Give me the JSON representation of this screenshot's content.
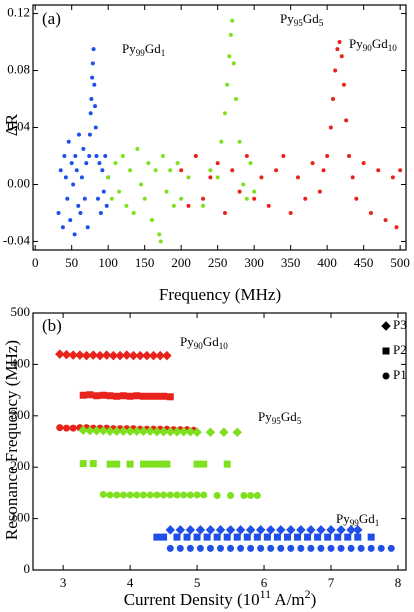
{
  "chart_data": [
    {
      "type": "scatter",
      "label": "(a)",
      "x_label": [
        "Frequency (MHz)"
      ],
      "y_label": "ΔR",
      "xlim": [
        -3,
        508
      ],
      "ylim": [
        -0.046,
        0.126
      ],
      "xticks": [
        0,
        50,
        100,
        150,
        200,
        250,
        300,
        350,
        400,
        450,
        500
      ],
      "yticks": [
        -0.04,
        {
          "value": 0,
          "label": "0.00"
        },
        0.04,
        0.08,
        0.12
      ],
      "annotations": [
        [
          "Py",
          "99",
          "Gd",
          "1"
        ],
        [
          "Py",
          "95",
          "Gd",
          "5"
        ],
        [
          "Py",
          "90",
          "Gd",
          "10"
        ]
      ],
      "series": [
        {
          "color": "#1f4fe8",
          "marker": "circle",
          "x": [
            32,
            35,
            38,
            40,
            42,
            44,
            46,
            48,
            50,
            52,
            54,
            55,
            57,
            59,
            60,
            62,
            64,
            66,
            68,
            70,
            72,
            74,
            75,
            76,
            77,
            78,
            79,
            80,
            81,
            82,
            83,
            84,
            86,
            88,
            90,
            92,
            94,
            96,
            98,
            100
          ],
          "values": [
            -0.02,
            0.01,
            -0.03,
            0.02,
            0.005,
            -0.01,
            0.03,
            -0.025,
            0.015,
            0.0,
            -0.035,
            0.02,
            0.01,
            -0.015,
            0.035,
            -0.02,
            0.005,
            0.025,
            -0.01,
            0.015,
            -0.03,
            0.02,
            0.035,
            0.05,
            0.06,
            0.075,
            0.085,
            0.095,
            0.07,
            0.055,
            0.04,
            0.02,
            -0.01,
            0.015,
            -0.02,
            0.01,
            -0.005,
            0.02,
            -0.015,
            0.005
          ]
        },
        {
          "color": "#7fe01f",
          "marker": "circle",
          "x": [
            100,
            105,
            110,
            115,
            120,
            125,
            130,
            135,
            140,
            145,
            150,
            155,
            160,
            165,
            170,
            172,
            175,
            180,
            185,
            190,
            195,
            200,
            210,
            220,
            230,
            240,
            250,
            255,
            260,
            263,
            266,
            268,
            270,
            272,
            275,
            280,
            285,
            290,
            295,
            300
          ],
          "values": [
            0.005,
            -0.01,
            0.015,
            -0.005,
            0.02,
            -0.015,
            0.01,
            -0.02,
            0.025,
            0.0,
            -0.01,
            0.015,
            -0.025,
            0.01,
            -0.035,
            -0.04,
            0.02,
            -0.005,
            0.01,
            -0.015,
            0.015,
            -0.01,
            0.005,
            0.02,
            -0.015,
            0.01,
            0.005,
            0.03,
            0.05,
            0.07,
            0.09,
            0.105,
            0.115,
            0.085,
            0.06,
            0.03,
            0.0,
            -0.01,
            0.015,
            -0.005
          ]
        },
        {
          "color": "#e8231c",
          "marker": "circle",
          "x": [
            200,
            210,
            220,
            230,
            240,
            250,
            260,
            270,
            280,
            290,
            300,
            310,
            320,
            330,
            340,
            350,
            360,
            370,
            380,
            390,
            395,
            400,
            405,
            408,
            411,
            414,
            417,
            420,
            423,
            426,
            430,
            435,
            440,
            450,
            460,
            470,
            480,
            490,
            495,
            500
          ],
          "values": [
            0.01,
            -0.015,
            0.02,
            -0.01,
            0.005,
            0.015,
            -0.02,
            0.01,
            -0.005,
            0.02,
            -0.01,
            0.005,
            -0.015,
            0.01,
            0.02,
            -0.02,
            0.005,
            -0.01,
            0.015,
            -0.005,
            0.01,
            0.02,
            0.04,
            0.06,
            0.08,
            0.095,
            0.1,
            0.09,
            0.07,
            0.045,
            0.02,
            0.005,
            -0.01,
            0.015,
            -0.02,
            0.01,
            -0.025,
            0.005,
            -0.03,
            0.01
          ]
        }
      ]
    },
    {
      "type": "scatter",
      "label": "(b)",
      "x_label": [
        "Current Density (10",
        "11",
        " A/m",
        "2",
        ")"
      ],
      "y_label": "Resonance Frequency (MHz)",
      "xlim": [
        2.55,
        8.12
      ],
      "ylim": [
        0,
        500
      ],
      "xticks": [
        3,
        4,
        5,
        6,
        7,
        8
      ],
      "yticks": [
        0,
        100,
        200,
        300,
        400,
        500
      ],
      "annotations": [
        [
          "Py",
          "90",
          "Gd",
          "10"
        ],
        [
          "Py",
          "95",
          "Gd",
          "5"
        ],
        [
          "Py",
          "99",
          "Gd",
          "1"
        ]
      ],
      "legend": [
        {
          "label": "P3",
          "marker": "diamond"
        },
        {
          "label": "P2",
          "marker": "square"
        },
        {
          "label": "P1",
          "marker": "circle"
        }
      ],
      "series": [
        {
          "color": "#e8231c",
          "marker": "diamond",
          "x": [
            2.95,
            3.05,
            3.15,
            3.25,
            3.35,
            3.45,
            3.55,
            3.65,
            3.75,
            3.85,
            3.95,
            4.05,
            4.15,
            4.25,
            4.35,
            4.45,
            4.55
          ],
          "values": [
            420,
            419,
            418,
            418,
            417,
            418,
            417,
            418,
            417,
            417,
            418,
            417,
            417,
            417,
            417,
            417,
            417
          ]
        },
        {
          "color": "#e8231c",
          "marker": "square",
          "x": [
            3.3,
            3.4,
            3.5,
            3.6,
            3.7,
            3.8,
            3.9,
            4.0,
            4.1,
            4.2,
            4.3,
            4.4,
            4.5,
            4.6
          ],
          "values": [
            340,
            341,
            339,
            340,
            339,
            338,
            339,
            338,
            339,
            338,
            338,
            338,
            338,
            337
          ]
        },
        {
          "color": "#e8231c",
          "marker": "circle",
          "x": [
            2.95,
            3.05,
            3.15,
            3.25,
            3.35,
            3.45,
            3.55,
            3.65,
            3.75,
            3.85,
            3.95,
            4.05,
            4.15,
            4.25,
            4.35,
            4.45,
            4.55,
            4.65,
            4.75,
            4.85,
            4.95
          ],
          "values": [
            277,
            276,
            276,
            277,
            277,
            276,
            276,
            276,
            275,
            275,
            275,
            275,
            274,
            274,
            274,
            274,
            274,
            273,
            273,
            273,
            272
          ]
        },
        {
          "color": "#7fe01f",
          "marker": "diamond",
          "x": [
            3.3,
            3.4,
            3.5,
            3.6,
            3.7,
            3.8,
            3.9,
            4.0,
            4.1,
            4.2,
            4.3,
            4.4,
            4.5,
            4.6,
            4.7,
            4.8,
            4.9,
            5.0,
            5.2,
            5.4,
            5.6
          ],
          "values": [
            272,
            271,
            271,
            271,
            270,
            270,
            270,
            270,
            270,
            270,
            270,
            269,
            269,
            269,
            269,
            269,
            269,
            268,
            268,
            268,
            268
          ]
        },
        {
          "color": "#7fe01f",
          "marker": "square",
          "x": [
            3.3,
            3.45,
            3.7,
            3.8,
            4.0,
            4.2,
            4.3,
            4.4,
            4.5,
            4.55,
            5.0,
            5.1,
            5.45
          ],
          "values": [
            207,
            207,
            206,
            206,
            206,
            206,
            206,
            206,
            206,
            206,
            206,
            206,
            206
          ]
        },
        {
          "color": "#7fe01f",
          "marker": "circle",
          "x": [
            3.6,
            3.7,
            3.8,
            3.9,
            4.0,
            4.1,
            4.2,
            4.3,
            4.4,
            4.5,
            4.6,
            4.7,
            4.8,
            4.9,
            5.0,
            5.1,
            5.3,
            5.5,
            5.7,
            5.8,
            5.9
          ],
          "values": [
            147,
            146,
            146,
            146,
            146,
            146,
            146,
            146,
            146,
            146,
            146,
            146,
            146,
            146,
            146,
            146,
            145,
            145,
            145,
            145,
            145
          ]
        },
        {
          "color": "#1f4fe8",
          "marker": "diamond",
          "x": [
            4.6,
            4.75,
            4.9,
            5.05,
            5.2,
            5.35,
            5.5,
            5.65,
            5.8,
            5.95,
            6.1,
            6.25,
            6.4,
            6.55,
            6.7,
            6.85,
            7.0,
            7.15,
            7.3,
            7.4
          ],
          "values": [
            78,
            78,
            78,
            78,
            78,
            78,
            78,
            78,
            78,
            78,
            78,
            78,
            78,
            78,
            78,
            78,
            78,
            78,
            78,
            78
          ]
        },
        {
          "color": "#1f4fe8",
          "marker": "square",
          "x": [
            4.4,
            4.5,
            4.7,
            4.85,
            5.0,
            5.15,
            5.3,
            5.45,
            5.6,
            5.75,
            5.9,
            6.05,
            6.2,
            6.35,
            6.5,
            6.65,
            6.8,
            6.95,
            7.1,
            7.25,
            7.4,
            7.6
          ],
          "values": [
            64,
            64,
            64,
            64,
            64,
            64,
            64,
            64,
            64,
            64,
            64,
            64,
            64,
            64,
            64,
            64,
            64,
            64,
            64,
            64,
            64,
            64
          ]
        },
        {
          "color": "#1f4fe8",
          "marker": "circle",
          "x": [
            4.6,
            4.75,
            4.9,
            5.05,
            5.2,
            5.35,
            5.5,
            5.65,
            5.8,
            5.95,
            6.1,
            6.25,
            6.4,
            6.55,
            6.7,
            6.85,
            7.0,
            7.15,
            7.3,
            7.45,
            7.6,
            7.75,
            7.9
          ],
          "values": [
            42,
            42,
            42,
            42,
            42,
            42,
            42,
            42,
            42,
            42,
            42,
            42,
            42,
            42,
            42,
            42,
            42,
            42,
            42,
            42,
            42,
            42,
            42
          ]
        }
      ]
    }
  ]
}
